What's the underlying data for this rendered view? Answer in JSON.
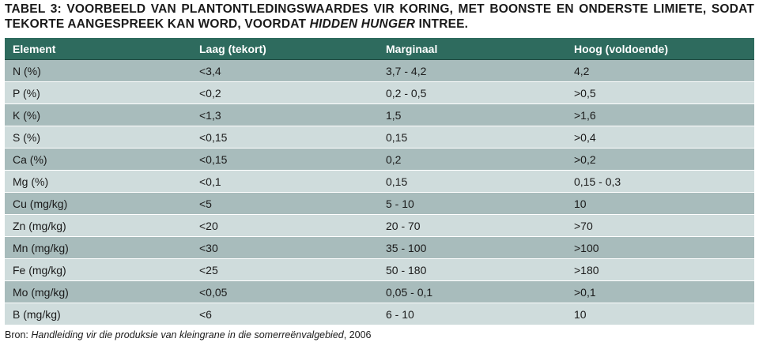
{
  "caption": {
    "prefix": "Tabel 3: Voorbeeld van plantontledingswaardes vir koring, met boonste en onderste limiete, sodat tekorte aangespreek kan word, voordat ",
    "emphasis": "hidden hunger",
    "suffix": " intree."
  },
  "table": {
    "headers": [
      "Element",
      "Laag (tekort)",
      "Marginaal",
      "Hoog (voldoende)"
    ],
    "rows": [
      [
        "N (%)",
        "<3,4",
        "3,7 - 4,2",
        "4,2"
      ],
      [
        "P (%)",
        "<0,2",
        "0,2 - 0,5",
        ">0,5"
      ],
      [
        "K (%)",
        "<1,3",
        "1,5",
        ">1,6"
      ],
      [
        "S (%)",
        "<0,15",
        "0,15",
        ">0,4"
      ],
      [
        "Ca (%)",
        "<0,15",
        "0,2",
        ">0,2"
      ],
      [
        "Mg (%)",
        "<0,1",
        "0,15",
        "0,15 - 0,3"
      ],
      [
        "Cu (mg/kg)",
        "<5",
        "5 - 10",
        "10"
      ],
      [
        "Zn (mg/kg)",
        "<20",
        "20 - 70",
        ">70"
      ],
      [
        "Mn (mg/kg)",
        "<30",
        "35 - 100",
        ">100"
      ],
      [
        "Fe (mg/kg)",
        "<25",
        "50 - 180",
        ">180"
      ],
      [
        "Mo (mg/kg)",
        "<0,05",
        "0,05 - 0,1",
        ">0,1"
      ],
      [
        "B (mg/kg)",
        "<6",
        "6 - 10",
        "10"
      ]
    ]
  },
  "source": {
    "label": "Bron: ",
    "title": "Handleiding vir die produksie van kleingrane in die somerreënvalgebied",
    "year": ", 2006"
  },
  "colors": {
    "header_bg": "#2e6b5e",
    "row_dark": "#a8bcbc",
    "row_light": "#cfdcdc"
  }
}
